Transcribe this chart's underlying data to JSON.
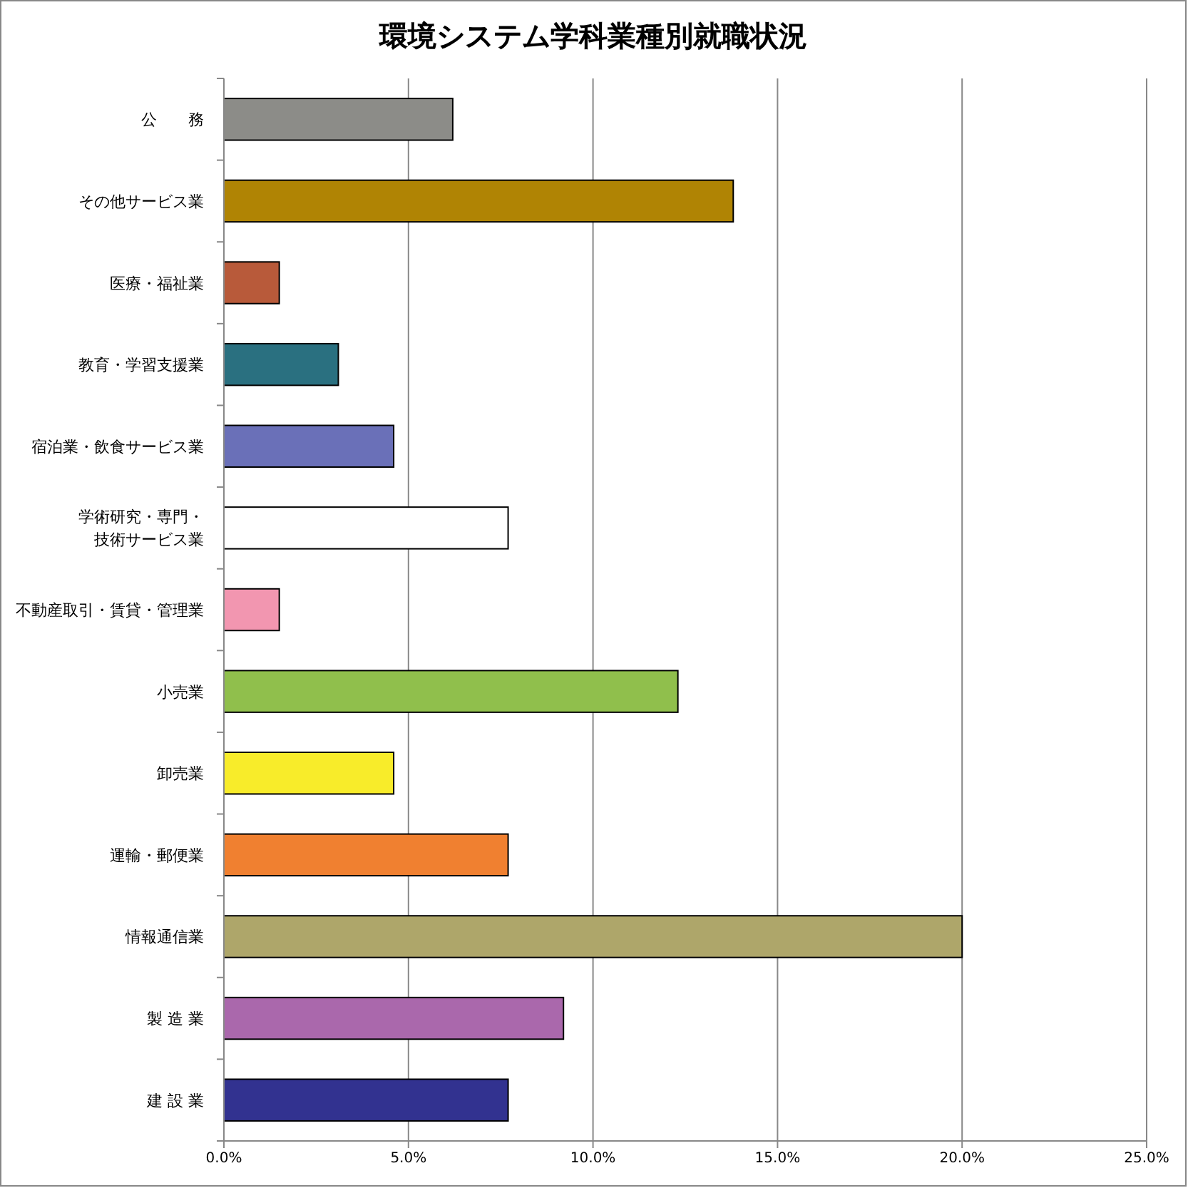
{
  "chart_data": {
    "type": "bar",
    "orientation": "horizontal",
    "title": "環境システム学科業種別就職状況",
    "categories": [
      "公　　務",
      "その他サービス業",
      "医療・福祉業",
      "教育・学習支援業",
      "宿泊業・飲食サービス業",
      "学術研究・専門・技術サービス業",
      "不動産取引・賃貸・管理業",
      "小売業",
      "卸売業",
      "運輸・郵便業",
      "情報通信業",
      "製 造 業",
      "建 設 業"
    ],
    "values": [
      6.2,
      13.8,
      1.5,
      3.1,
      4.6,
      7.7,
      1.5,
      12.3,
      4.6,
      7.7,
      20.0,
      9.2,
      7.7
    ],
    "colors": [
      "#8c8c88",
      "#b08404",
      "#b85a3a",
      "#2a7080",
      "#6a70b8",
      "#ffffff",
      "#f296b0",
      "#90bf4c",
      "#f8ec2a",
      "#f08030",
      "#aea66a",
      "#aa68ac",
      "#323290"
    ],
    "xlim": [
      0,
      25
    ],
    "xticks": [
      {
        "value": 0,
        "label": "0.0%"
      },
      {
        "value": 5,
        "label": "5.0%"
      },
      {
        "value": 10,
        "label": "10.0%"
      },
      {
        "value": 15,
        "label": "15.0%"
      },
      {
        "value": 20,
        "label": "20.0%"
      },
      {
        "value": 25,
        "label": "25.0%"
      }
    ],
    "grid": "x"
  }
}
